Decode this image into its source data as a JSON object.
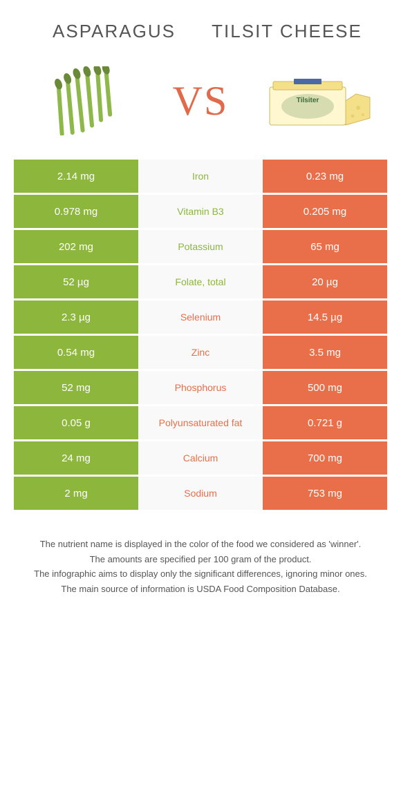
{
  "header": {
    "left_title": "ASPARAGUS",
    "right_title": "TILSIT CHEESE",
    "vs": "VS"
  },
  "colors": {
    "left_bar": "#8cb63c",
    "right_bar": "#e86f4a",
    "left_text": "#8cb63c",
    "right_text": "#e86f4a",
    "mid_bg": "#f9f9f9"
  },
  "rows": [
    {
      "left": "2.14 mg",
      "name": "Iron",
      "right": "0.23 mg",
      "winner": "left"
    },
    {
      "left": "0.978 mg",
      "name": "Vitamin B3",
      "right": "0.205 mg",
      "winner": "left"
    },
    {
      "left": "202 mg",
      "name": "Potassium",
      "right": "65 mg",
      "winner": "left"
    },
    {
      "left": "52 µg",
      "name": "Folate, total",
      "right": "20 µg",
      "winner": "left"
    },
    {
      "left": "2.3 µg",
      "name": "Selenium",
      "right": "14.5 µg",
      "winner": "right"
    },
    {
      "left": "0.54 mg",
      "name": "Zinc",
      "right": "3.5 mg",
      "winner": "right"
    },
    {
      "left": "52 mg",
      "name": "Phosphorus",
      "right": "500 mg",
      "winner": "right"
    },
    {
      "left": "0.05 g",
      "name": "Polyunsaturated fat",
      "right": "0.721 g",
      "winner": "right"
    },
    {
      "left": "24 mg",
      "name": "Calcium",
      "right": "700 mg",
      "winner": "right"
    },
    {
      "left": "2 mg",
      "name": "Sodium",
      "right": "753 mg",
      "winner": "right"
    }
  ],
  "footer": {
    "line1": "The nutrient name is displayed in the color of the food we considered as 'winner'.",
    "line2": "The amounts are specified per 100 gram of the product.",
    "line3": "The infographic aims to display only the significant differences, ignoring minor ones.",
    "line4": "The main source of information is USDA Food Composition Database."
  }
}
